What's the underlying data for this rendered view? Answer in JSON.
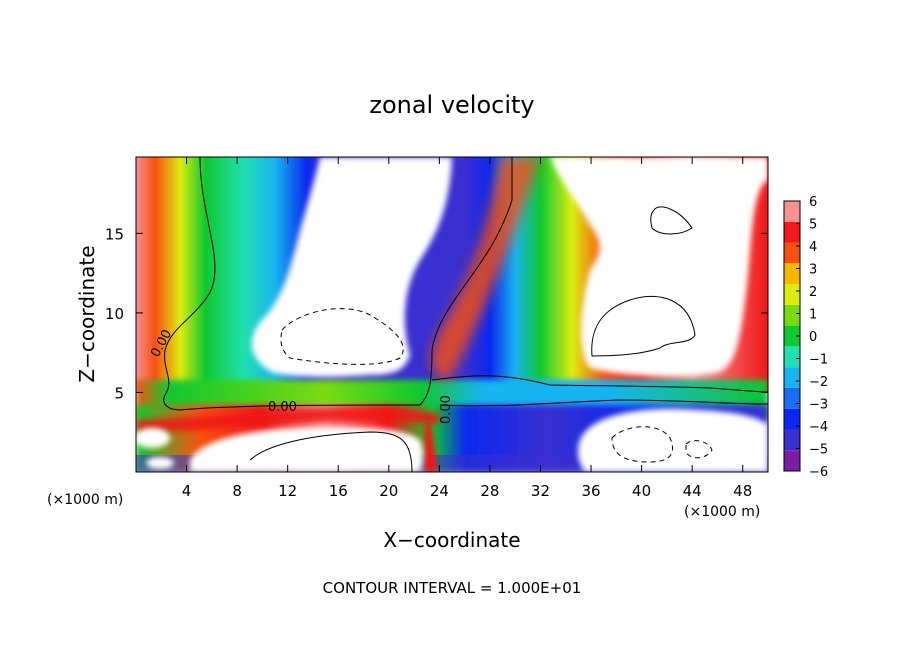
{
  "chart_data": {
    "type": "heatmap",
    "title": "zonal velocity",
    "xlabel": "X−coordinate",
    "ylabel": "Z−coordinate",
    "x_unit_left": "(×1000 m)",
    "x_unit_right": "(×1000 m)",
    "footer": "CONTOUR INTERVAL = 1.000E+01",
    "xlim": [
      0,
      50
    ],
    "ylim": [
      0,
      19.8
    ],
    "x_ticks": [
      4,
      8,
      12,
      16,
      20,
      24,
      28,
      32,
      36,
      40,
      44,
      48
    ],
    "x_tick_labels": [
      "4",
      "8",
      "12",
      "16",
      "20",
      "24",
      "28",
      "32",
      "36",
      "40",
      "44",
      "48"
    ],
    "y_ticks": [
      5,
      10,
      15
    ],
    "y_tick_labels": [
      "5",
      "10",
      "15"
    ],
    "colorbar": {
      "levels": [
        -6,
        -5,
        -4,
        -3,
        -2,
        -1,
        0,
        1,
        2,
        3,
        4,
        5,
        6
      ],
      "labels": [
        "−6",
        "−5",
        "−4",
        "−3",
        "−2",
        "−1",
        "0",
        "1",
        "2",
        "3",
        "4",
        "5",
        "6"
      ],
      "colors": [
        "#7a1fa8",
        "#3a2fd0",
        "#0a28f0",
        "#1a6cf0",
        "#18b4f0",
        "#20e0b0",
        "#10c830",
        "#7ada10",
        "#dcec10",
        "#f8b800",
        "#f85010",
        "#f01818",
        "#f89090"
      ]
    },
    "contour_labels": [
      "0.00",
      "0.00",
      "0.00"
    ],
    "unresolved_color": "#ffffff"
  }
}
